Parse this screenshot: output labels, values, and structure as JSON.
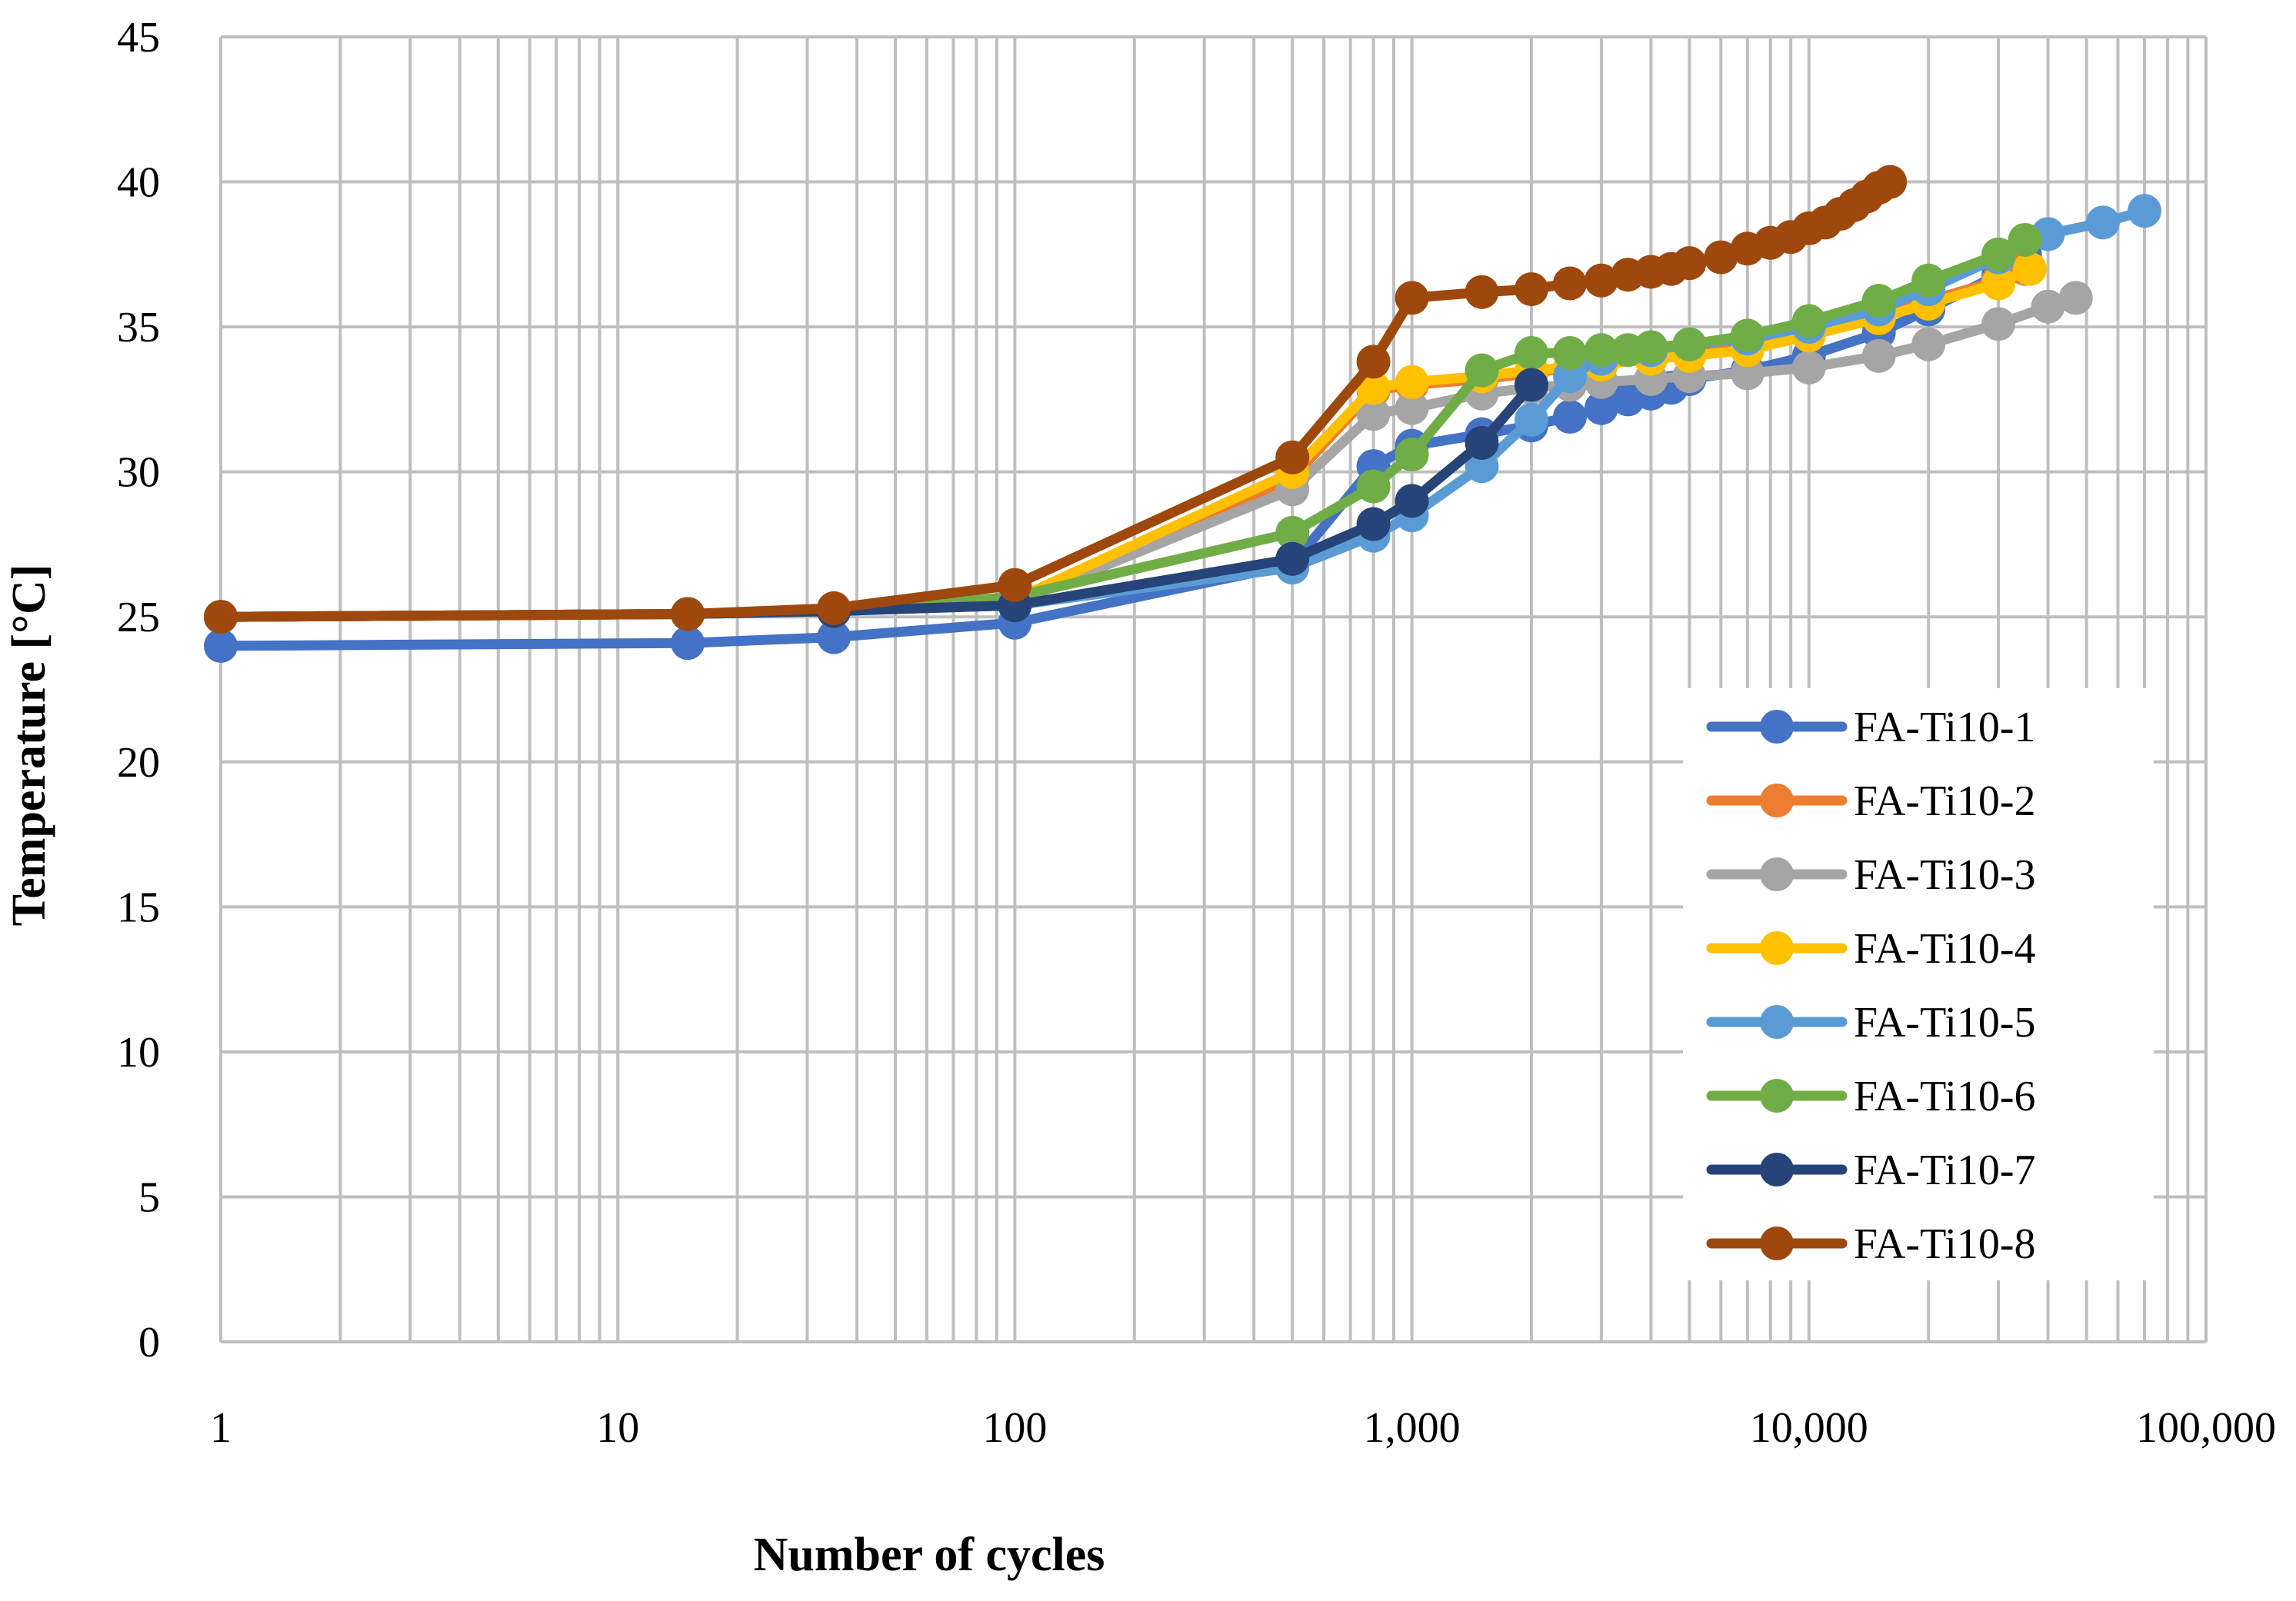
{
  "chart_data": {
    "type": "line",
    "xscale": "log",
    "xlabel": "Number of cycles",
    "ylabel": "Temperature [°C]",
    "xlim": [
      1,
      100000
    ],
    "ylim": [
      0,
      45
    ],
    "grid": true,
    "legend_position": "right",
    "x_tick_labels": [
      "1",
      "10",
      "100",
      "1,000",
      "10,000",
      "100,000"
    ],
    "x_tick_values": [
      1,
      10,
      100,
      1000,
      10000,
      100000
    ],
    "y_tick_labels": [
      "0",
      "5",
      "10",
      "15",
      "20",
      "25",
      "30",
      "35",
      "40",
      "45"
    ],
    "y_tick_values": [
      0,
      5,
      10,
      15,
      20,
      25,
      30,
      35,
      40,
      45
    ],
    "series": [
      {
        "name": "FA-Ti10-1",
        "color": "#4472C4",
        "points": [
          [
            1,
            24
          ],
          [
            15,
            24.1
          ],
          [
            35,
            24.3
          ],
          [
            100,
            24.8
          ],
          [
            500,
            26.8
          ],
          [
            800,
            30.2
          ],
          [
            1000,
            30.9
          ],
          [
            1500,
            31.3
          ],
          [
            2000,
            31.6
          ],
          [
            2500,
            31.9
          ],
          [
            3000,
            32.2
          ],
          [
            3500,
            32.5
          ],
          [
            4000,
            32.7
          ],
          [
            4500,
            32.9
          ],
          [
            5000,
            33.2
          ],
          [
            7000,
            33.5
          ],
          [
            10000,
            34
          ],
          [
            15000,
            34.8
          ],
          [
            20000,
            35.6
          ],
          [
            30000,
            36.8
          ],
          [
            35000,
            37.5
          ]
        ]
      },
      {
        "name": "FA-Ti10-2",
        "color": "#ED7D31",
        "points": [
          [
            1,
            25
          ],
          [
            15,
            25.1
          ],
          [
            35,
            25.2
          ],
          [
            100,
            25.6
          ],
          [
            500,
            29.8
          ],
          [
            800,
            32.8
          ],
          [
            1000,
            33
          ],
          [
            1500,
            33.2
          ],
          [
            2000,
            33.4
          ],
          [
            2500,
            33.6
          ],
          [
            3000,
            33.8
          ],
          [
            4000,
            34
          ],
          [
            5000,
            34.1
          ],
          [
            7000,
            34.3
          ],
          [
            10000,
            34.8
          ],
          [
            15000,
            35.4
          ],
          [
            20000,
            35.9
          ],
          [
            30000,
            36.6
          ],
          [
            35000,
            37
          ]
        ]
      },
      {
        "name": "FA-Ti10-3",
        "color": "#A5A5A5",
        "points": [
          [
            1,
            25
          ],
          [
            15,
            25.1
          ],
          [
            35,
            25.2
          ],
          [
            100,
            25.5
          ],
          [
            500,
            29.4
          ],
          [
            800,
            32
          ],
          [
            1000,
            32.2
          ],
          [
            1500,
            32.7
          ],
          [
            2000,
            32.9
          ],
          [
            2500,
            33
          ],
          [
            3000,
            33.1
          ],
          [
            4000,
            33.2
          ],
          [
            5000,
            33.3
          ],
          [
            7000,
            33.4
          ],
          [
            10000,
            33.6
          ],
          [
            15000,
            34
          ],
          [
            20000,
            34.4
          ],
          [
            30000,
            35.1
          ],
          [
            40000,
            35.7
          ],
          [
            47000,
            36
          ]
        ]
      },
      {
        "name": "FA-Ti10-4",
        "color": "#FFC000",
        "points": [
          [
            1,
            25
          ],
          [
            15,
            25.1
          ],
          [
            35,
            25.2
          ],
          [
            100,
            25.6
          ],
          [
            500,
            30
          ],
          [
            800,
            32.9
          ],
          [
            1000,
            33.1
          ],
          [
            1500,
            33.3
          ],
          [
            2000,
            33.5
          ],
          [
            2500,
            33.6
          ],
          [
            3000,
            33.7
          ],
          [
            4000,
            33.9
          ],
          [
            5000,
            34
          ],
          [
            7000,
            34.2
          ],
          [
            10000,
            34.7
          ],
          [
            15000,
            35.3
          ],
          [
            20000,
            35.8
          ],
          [
            30000,
            36.5
          ],
          [
            36000,
            37
          ]
        ]
      },
      {
        "name": "FA-Ti10-5",
        "color": "#5B9BD5",
        "points": [
          [
            1,
            25
          ],
          [
            15,
            25.1
          ],
          [
            35,
            25.2
          ],
          [
            100,
            25.4
          ],
          [
            500,
            26.7
          ],
          [
            800,
            27.8
          ],
          [
            1000,
            28.5
          ],
          [
            1500,
            30.2
          ],
          [
            2000,
            31.8
          ],
          [
            2500,
            33.3
          ],
          [
            3000,
            33.9
          ],
          [
            4000,
            34.2
          ],
          [
            5000,
            34.4
          ],
          [
            7000,
            34.6
          ],
          [
            10000,
            35
          ],
          [
            15000,
            35.6
          ],
          [
            20000,
            36.3
          ],
          [
            30000,
            37.4
          ],
          [
            40000,
            38.2
          ],
          [
            55000,
            38.6
          ],
          [
            70000,
            39
          ]
        ]
      },
      {
        "name": "FA-Ti10-6",
        "color": "#70AD47",
        "points": [
          [
            1,
            25
          ],
          [
            15,
            25.1
          ],
          [
            35,
            25.2
          ],
          [
            100,
            25.7
          ],
          [
            500,
            27.9
          ],
          [
            800,
            29.5
          ],
          [
            1000,
            30.6
          ],
          [
            1500,
            33.5
          ],
          [
            2000,
            34.1
          ],
          [
            2500,
            34.1
          ],
          [
            3000,
            34.2
          ],
          [
            3500,
            34.2
          ],
          [
            4000,
            34.3
          ],
          [
            5000,
            34.4
          ],
          [
            7000,
            34.7
          ],
          [
            10000,
            35.2
          ],
          [
            15000,
            35.9
          ],
          [
            20000,
            36.6
          ],
          [
            30000,
            37.5
          ],
          [
            35000,
            38
          ]
        ]
      },
      {
        "name": "FA-Ti10-7",
        "color": "#264478",
        "points": [
          [
            1,
            25
          ],
          [
            15,
            25.1
          ],
          [
            35,
            25.2
          ],
          [
            100,
            25.4
          ],
          [
            500,
            27
          ],
          [
            800,
            28.2
          ],
          [
            1000,
            29
          ],
          [
            1500,
            31
          ],
          [
            2000,
            33
          ]
        ]
      },
      {
        "name": "FA-Ti10-8",
        "color": "#9E480E",
        "points": [
          [
            1,
            25
          ],
          [
            15,
            25.1
          ],
          [
            35,
            25.3
          ],
          [
            100,
            26.1
          ],
          [
            500,
            30.5
          ],
          [
            800,
            33.8
          ],
          [
            1000,
            36
          ],
          [
            1500,
            36.2
          ],
          [
            2000,
            36.3
          ],
          [
            2500,
            36.5
          ],
          [
            3000,
            36.6
          ],
          [
            3500,
            36.8
          ],
          [
            4000,
            36.9
          ],
          [
            4500,
            37
          ],
          [
            5000,
            37.2
          ],
          [
            6000,
            37.4
          ],
          [
            7000,
            37.7
          ],
          [
            8000,
            37.9
          ],
          [
            9000,
            38.1
          ],
          [
            10000,
            38.4
          ],
          [
            11000,
            38.6
          ],
          [
            12000,
            38.9
          ],
          [
            13000,
            39.2
          ],
          [
            14000,
            39.5
          ],
          [
            15000,
            39.8
          ],
          [
            16000,
            40
          ]
        ]
      }
    ]
  }
}
